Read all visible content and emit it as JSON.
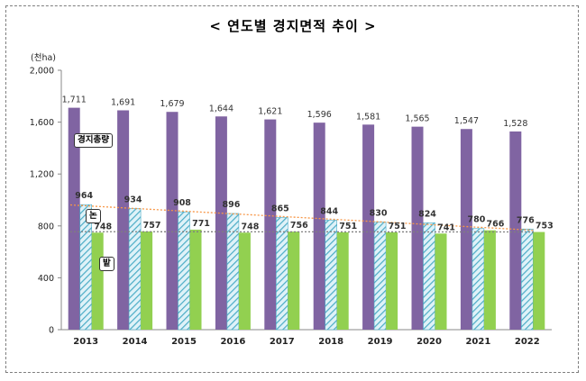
{
  "title": "< 연도별 경지면적 추이 >",
  "chart_data": {
    "type": "bar",
    "title": "< 연도별 경지면적 추이 >",
    "ylabel_unit": "(천ha)",
    "categories": [
      "2013",
      "2014",
      "2015",
      "2016",
      "2017",
      "2018",
      "2019",
      "2020",
      "2021",
      "2022"
    ],
    "ylim": [
      0,
      2000
    ],
    "yticks": [
      "0",
      "400",
      "800",
      "1,200",
      "1,600",
      "2,000"
    ],
    "ytick_values": [
      0,
      400,
      800,
      1200,
      1600,
      2000
    ],
    "series": [
      {
        "name": "경지총량",
        "color": "#8064a2",
        "values": [
          1711,
          1691,
          1679,
          1644,
          1621,
          1596,
          1581,
          1565,
          1547,
          1528
        ],
        "labels": [
          "1,711",
          "1,691",
          "1,679",
          "1,644",
          "1,621",
          "1,596",
          "1,581",
          "1,565",
          "1,547",
          "1,528"
        ]
      },
      {
        "name": "논",
        "color": "#4bacc6",
        "values": [
          964,
          934,
          908,
          896,
          865,
          844,
          830,
          824,
          780,
          776
        ],
        "labels": [
          "964",
          "934",
          "908",
          "896",
          "865",
          "844",
          "830",
          "824",
          "780",
          "776"
        ]
      },
      {
        "name": "밭",
        "color": "#92d050",
        "values": [
          748,
          757,
          771,
          748,
          756,
          751,
          751,
          741,
          766,
          753
        ],
        "labels": [
          "748",
          "757",
          "771",
          "748",
          "756",
          "751",
          "751",
          "741",
          "766",
          "753"
        ]
      }
    ],
    "trendlines": [
      "논",
      "밭"
    ],
    "grid": false,
    "legend": "inline labels on left"
  }
}
